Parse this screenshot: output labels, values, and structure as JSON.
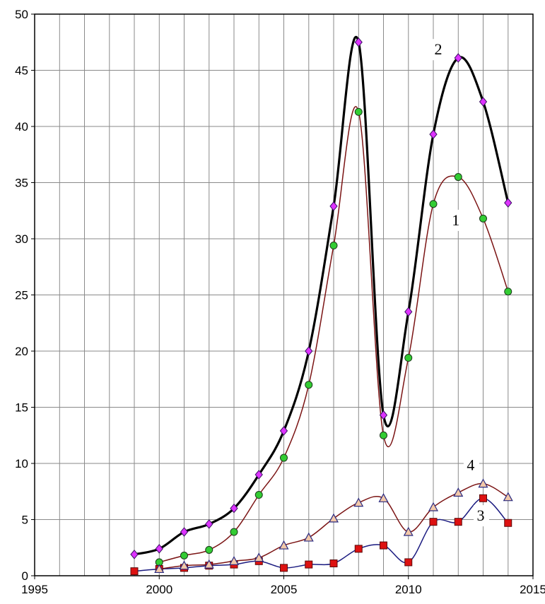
{
  "chart_data": {
    "type": "line",
    "title": "",
    "xlabel": "",
    "ylabel": "",
    "xlim": [
      1995,
      2015
    ],
    "ylim": [
      0,
      50
    ],
    "x_ticks": [
      1995,
      2000,
      2005,
      2010,
      2015
    ],
    "y_ticks": [
      0,
      5,
      10,
      15,
      20,
      25,
      30,
      35,
      40,
      45,
      50
    ],
    "grid": true,
    "x_minor_step": 1,
    "series": [
      {
        "name": "1",
        "label_at": [
          2011.9,
          31.2
        ],
        "color": "#7b1414",
        "line_width": 1.5,
        "marker": "circle",
        "marker_fill": "#33cc33",
        "x": [
          2000,
          2001,
          2002,
          2003,
          2004,
          2005,
          2006,
          2007,
          2008,
          2009,
          2010,
          2011,
          2012,
          2013,
          2014
        ],
        "y": [
          1.2,
          1.8,
          2.3,
          3.9,
          7.2,
          10.5,
          17.0,
          29.4,
          41.3,
          12.5,
          19.4,
          33.1,
          35.5,
          31.8,
          25.3
        ]
      },
      {
        "name": "2",
        "label_at": [
          2011.2,
          46.4
        ],
        "color": "#000000",
        "line_width": 3.2,
        "marker": "diamond",
        "marker_fill": "#dd33ff",
        "x": [
          1999,
          2000,
          2001,
          2002,
          2003,
          2004,
          2005,
          2006,
          2007,
          2008,
          2009,
          2010,
          2011,
          2012,
          2013,
          2014
        ],
        "y": [
          1.9,
          2.4,
          3.9,
          4.6,
          6.0,
          9.0,
          12.9,
          20.0,
          32.9,
          47.5,
          14.3,
          23.5,
          39.3,
          46.1,
          42.2,
          33.2
        ]
      },
      {
        "name": "3",
        "label_at": [
          2012.9,
          4.9
        ],
        "color": "#1a1a80",
        "line_width": 1.5,
        "marker": "square",
        "marker_fill": "#dd1111",
        "x": [
          1999,
          2000,
          2001,
          2002,
          2003,
          2004,
          2005,
          2006,
          2007,
          2008,
          2009,
          2010,
          2011,
          2012,
          2013,
          2014
        ],
        "y": [
          0.4,
          0.6,
          0.7,
          0.9,
          1.0,
          1.3,
          0.7,
          1.0,
          1.1,
          2.4,
          2.7,
          1.2,
          4.8,
          4.8,
          6.9,
          4.7
        ]
      },
      {
        "name": "4",
        "label_at": [
          2012.5,
          9.4
        ],
        "color": "#7b1414",
        "line_width": 1.5,
        "marker": "triangle",
        "marker_fill": "#f2c8a8",
        "x": [
          2000,
          2001,
          2002,
          2003,
          2004,
          2005,
          2006,
          2007,
          2008,
          2009,
          2010,
          2011,
          2012,
          2013,
          2014
        ],
        "y": [
          0.6,
          0.9,
          1.0,
          1.3,
          1.6,
          2.7,
          3.4,
          5.1,
          6.5,
          6.9,
          3.9,
          6.1,
          7.4,
          8.2,
          7.0
        ]
      }
    ]
  }
}
